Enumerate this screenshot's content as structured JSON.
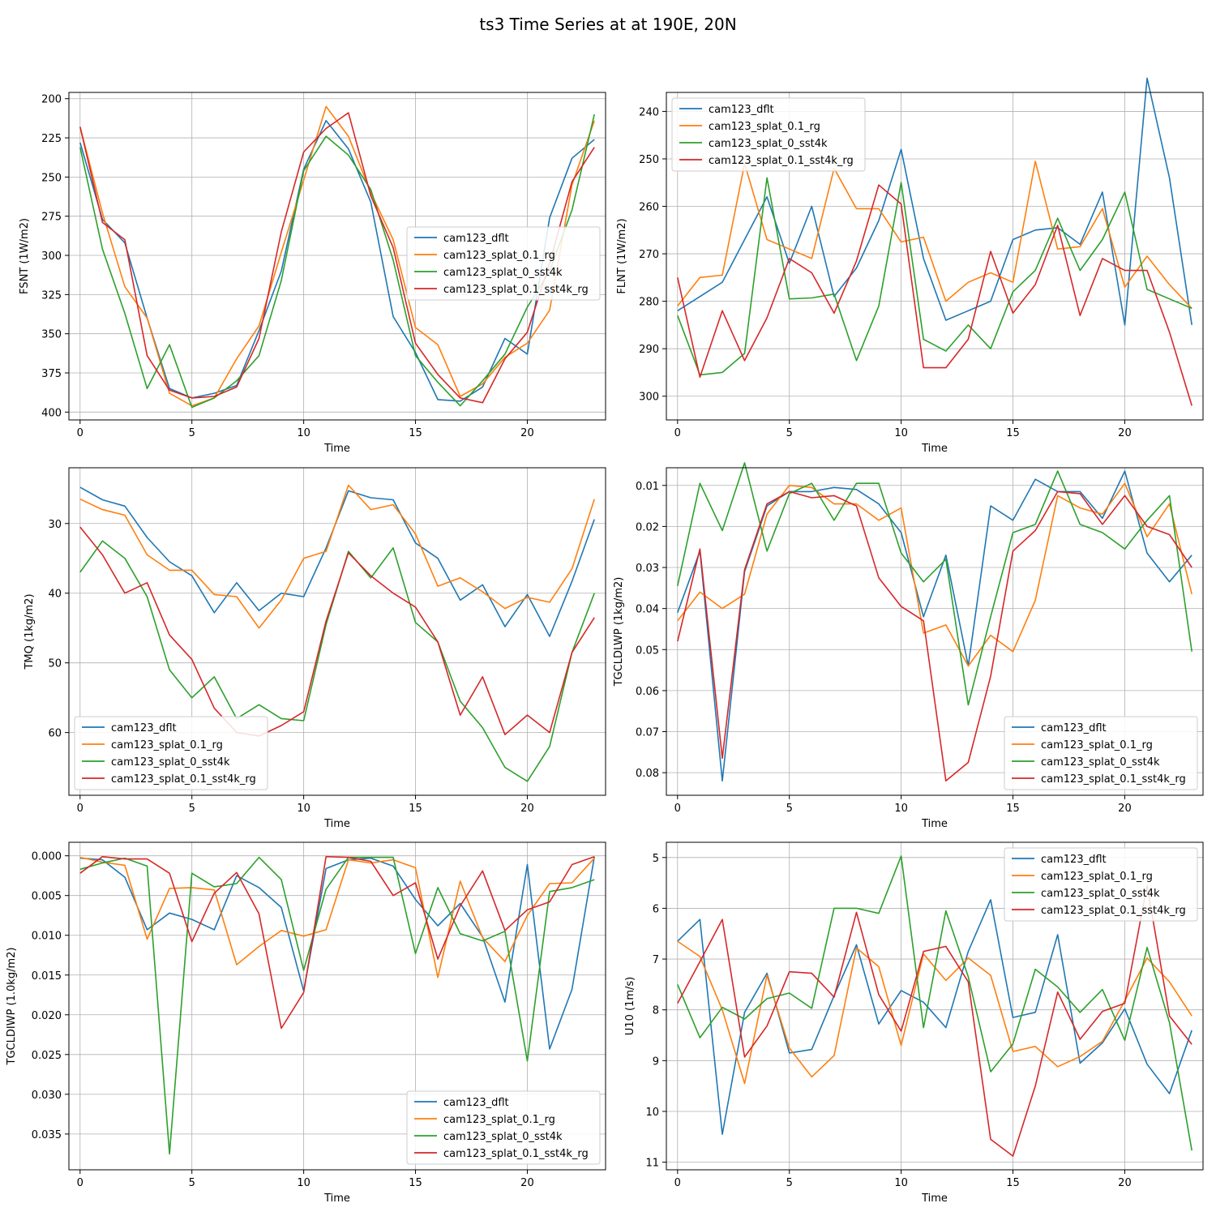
{
  "figure": {
    "title": "ts3 Time Series at at 190E, 20N"
  },
  "colors": {
    "cam123_dflt": "#1f77b4",
    "cam123_splat_0.1_rg": "#ff7f0e",
    "cam123_splat_0_sst4k": "#2ca02c",
    "cam123_splat_0.1_sst4k_rg": "#d62728"
  },
  "chart_data": [
    {
      "type": "line",
      "title": "",
      "xlabel": "Time",
      "ylabel": "FSNT (1W/m2)",
      "xlim": [
        -0.5,
        23.5
      ],
      "ylim": [
        405,
        196
      ],
      "xticks": [
        0,
        5,
        10,
        15,
        20
      ],
      "yticks": [
        200,
        225,
        250,
        275,
        300,
        325,
        350,
        375,
        400
      ],
      "y_inverted": true,
      "grid": true,
      "legend": "center-right",
      "x": [
        0,
        1,
        2,
        3,
        4,
        5,
        6,
        7,
        8,
        9,
        10,
        11,
        12,
        13,
        14,
        15,
        16,
        17,
        18,
        19,
        20,
        21,
        22,
        23
      ],
      "series": [
        {
          "name": "cam123_dflt",
          "values": [
            228,
            277,
            292,
            340,
            385,
            391,
            388,
            383,
            348,
            310,
            245,
            214,
            232,
            266,
            339,
            362,
            392,
            393,
            384,
            353,
            363,
            276,
            238,
            226
          ]
        },
        {
          "name": "cam123_splat_0.1_rg",
          "values": [
            218,
            273,
            320,
            340,
            388,
            396,
            391,
            366,
            345,
            298,
            252,
            205,
            224,
            260,
            290,
            346,
            357,
            390,
            382,
            365,
            356,
            335,
            255,
            214
          ]
        },
        {
          "name": "cam123_splat_0_sst4k",
          "values": [
            231,
            296,
            337,
            385,
            357,
            397,
            391,
            380,
            364,
            316,
            246,
            224,
            236,
            258,
            303,
            364,
            381,
            396,
            380,
            363,
            333,
            310,
            271,
            210
          ]
        },
        {
          "name": "cam123_splat_0.1_sst4k_rg",
          "values": [
            218,
            279,
            290,
            364,
            386,
            391,
            390,
            384,
            353,
            285,
            234,
            219,
            209,
            262,
            295,
            356,
            376,
            391,
            394,
            366,
            349,
            305,
            253,
            231
          ]
        }
      ]
    },
    {
      "type": "line",
      "title": "",
      "xlabel": "Time",
      "ylabel": "FLNT (1W/m2)",
      "xlim": [
        -0.5,
        23.5
      ],
      "ylim": [
        305,
        236
      ],
      "xticks": [
        0,
        5,
        10,
        15,
        20
      ],
      "yticks": [
        240,
        250,
        260,
        270,
        280,
        290,
        300
      ],
      "y_inverted": true,
      "grid": true,
      "legend": "top-left",
      "x": [
        0,
        1,
        2,
        3,
        4,
        5,
        6,
        7,
        8,
        9,
        10,
        11,
        12,
        13,
        14,
        15,
        16,
        17,
        18,
        19,
        20,
        21,
        22,
        23
      ],
      "series": [
        {
          "name": "cam123_dflt",
          "values": [
            282,
            279,
            276,
            267,
            258,
            272,
            260,
            279,
            273,
            263,
            248,
            271,
            284,
            282,
            280,
            267,
            265,
            264.5,
            268,
            257,
            285,
            233,
            254,
            285
          ]
        },
        {
          "name": "cam123_splat_0.1_rg",
          "values": [
            281,
            275,
            274.5,
            251,
            267,
            269,
            271,
            252,
            260.5,
            260.5,
            267.5,
            266.5,
            280,
            276,
            274,
            276,
            250.5,
            269,
            268.5,
            260.5,
            277,
            270.5,
            276.5,
            281.5
          ]
        },
        {
          "name": "cam123_splat_0_sst4k",
          "values": [
            283,
            295.5,
            295,
            291,
            254,
            279.5,
            279.3,
            278.5,
            292.5,
            281,
            255,
            288,
            290.5,
            285,
            290,
            278,
            273.5,
            262.5,
            273.5,
            267,
            257,
            277.5,
            279.5,
            281.5
          ]
        },
        {
          "name": "cam123_splat_0.1_sst4k_rg",
          "values": [
            275,
            296,
            282,
            292.5,
            283.5,
            271,
            274,
            282.5,
            271.5,
            255.5,
            259.5,
            294,
            294,
            288,
            269.5,
            282.5,
            276.5,
            264,
            283,
            271,
            273.5,
            273.5,
            286.5,
            302
          ]
        }
      ]
    },
    {
      "type": "line",
      "title": "",
      "xlabel": "Time",
      "ylabel": "TMQ (1kg/m2)",
      "xlim": [
        -0.5,
        23.5
      ],
      "ylim": [
        69,
        22
      ],
      "xticks": [
        0,
        5,
        10,
        15,
        20
      ],
      "yticks": [
        30,
        40,
        50,
        60
      ],
      "y_inverted": true,
      "grid": true,
      "legend": "bottom-left",
      "x": [
        0,
        1,
        2,
        3,
        4,
        5,
        6,
        7,
        8,
        9,
        10,
        11,
        12,
        13,
        14,
        15,
        16,
        17,
        18,
        19,
        20,
        21,
        22,
        23
      ],
      "series": [
        {
          "name": "cam123_dflt",
          "values": [
            24.8,
            26.6,
            27.5,
            32,
            35.5,
            37.5,
            42.8,
            38.5,
            42.5,
            40,
            40.5,
            33.5,
            25.3,
            26.3,
            26.6,
            32.8,
            35,
            41,
            38.8,
            44.8,
            40.2,
            46.2,
            38.3,
            29.4
          ]
        },
        {
          "name": "cam123_splat_0.1_rg",
          "values": [
            26.5,
            28,
            28.8,
            34.5,
            36.7,
            36.7,
            40.2,
            40.5,
            45,
            41,
            35,
            34,
            24.5,
            28,
            27.3,
            31.5,
            39,
            37.8,
            39.8,
            42.2,
            40.6,
            41.3,
            36.5,
            26.5
          ]
        },
        {
          "name": "cam123_splat_0_sst4k",
          "values": [
            37,
            32.5,
            35,
            40.5,
            51,
            55,
            52,
            58,
            56,
            58,
            58.3,
            44.5,
            34,
            37.8,
            33.5,
            44.2,
            47,
            55.5,
            59.3,
            65,
            67,
            62,
            48.5,
            40
          ]
        },
        {
          "name": "cam123_splat_0.1_sst4k_rg",
          "values": [
            30.5,
            34.5,
            40,
            38.5,
            46,
            49.5,
            56.5,
            60,
            60.5,
            59,
            57,
            44,
            34.2,
            37.5,
            40,
            42,
            47,
            57.5,
            52,
            60.3,
            57.5,
            60,
            48.5,
            43.5
          ]
        }
      ]
    },
    {
      "type": "line",
      "title": "",
      "xlabel": "Time",
      "ylabel": "TGCLDLWP (1kg/m2)",
      "xlim": [
        -0.5,
        23.5
      ],
      "ylim": [
        0.0855,
        0.0057
      ],
      "xticks": [
        0,
        5,
        10,
        15,
        20
      ],
      "yticks": [
        0.01,
        0.02,
        0.03,
        0.04,
        0.05,
        0.06,
        0.07,
        0.08
      ],
      "y_inverted": true,
      "grid": true,
      "legend": "bottom-right",
      "x": [
        0,
        1,
        2,
        3,
        4,
        5,
        6,
        7,
        8,
        9,
        10,
        11,
        12,
        13,
        14,
        15,
        16,
        17,
        18,
        19,
        20,
        21,
        22,
        23
      ],
      "series": [
        {
          "name": "cam123_dflt",
          "values": [
            0.041,
            0.026,
            0.082,
            0.031,
            0.015,
            0.0115,
            0.0115,
            0.0105,
            0.011,
            0.0145,
            0.0215,
            0.042,
            0.027,
            0.054,
            0.015,
            0.0185,
            0.0085,
            0.0115,
            0.0115,
            0.018,
            0.0065,
            0.0265,
            0.0335,
            0.027
          ]
        },
        {
          "name": "cam123_splat_0.1_rg",
          "values": [
            0.043,
            0.036,
            0.04,
            0.0365,
            0.017,
            0.01,
            0.0105,
            0.0145,
            0.0145,
            0.0185,
            0.0155,
            0.046,
            0.044,
            0.054,
            0.0465,
            0.0505,
            0.038,
            0.0125,
            0.0155,
            0.017,
            0.0095,
            0.0225,
            0.0145,
            0.0365
          ]
        },
        {
          "name": "cam123_splat_0_sst4k",
          "values": [
            0.0345,
            0.0095,
            0.021,
            0.0045,
            0.026,
            0.012,
            0.0095,
            0.0185,
            0.0095,
            0.0095,
            0.0265,
            0.0335,
            0.028,
            0.0635,
            0.042,
            0.0215,
            0.0195,
            0.0065,
            0.0195,
            0.0215,
            0.0255,
            0.0185,
            0.0125,
            0.0505
          ]
        },
        {
          "name": "cam123_splat_0.1_sst4k_rg",
          "values": [
            0.048,
            0.0255,
            0.0765,
            0.0305,
            0.0145,
            0.0115,
            0.013,
            0.0125,
            0.015,
            0.0325,
            0.0395,
            0.043,
            0.082,
            0.0775,
            0.0565,
            0.026,
            0.021,
            0.0115,
            0.012,
            0.0195,
            0.0125,
            0.02,
            0.022,
            0.03
          ]
        }
      ]
    },
    {
      "type": "line",
      "title": "",
      "xlabel": "Time",
      "ylabel": "TGCLDIWP (1.0kg/m2)",
      "xlim": [
        -0.5,
        23.5
      ],
      "ylim": [
        0.0395,
        -0.0017
      ],
      "xticks": [
        0,
        5,
        10,
        15,
        20
      ],
      "yticks": [
        0.0,
        0.005,
        0.01,
        0.015,
        0.02,
        0.025,
        0.03,
        0.035
      ],
      "ytick_labels": [
        "0.000",
        "0.005",
        "0.010",
        "0.015",
        "0.020",
        "0.025",
        "0.030",
        "0.035"
      ],
      "y_inverted": true,
      "grid": true,
      "legend": "bottom-right",
      "x": [
        0,
        1,
        2,
        3,
        4,
        5,
        6,
        7,
        8,
        9,
        10,
        11,
        12,
        13,
        14,
        15,
        16,
        17,
        18,
        19,
        20,
        21,
        22,
        23
      ],
      "series": [
        {
          "name": "cam123_dflt",
          "values": [
            0.0003,
            0.0005,
            0.0027,
            0.0093,
            0.0072,
            0.008,
            0.0093,
            0.0025,
            0.004,
            0.0065,
            0.017,
            0.0016,
            0.0005,
            0.0003,
            0.0013,
            0.0055,
            0.0088,
            0.006,
            0.0102,
            0.0184,
            0.0011,
            0.0243,
            0.0168,
            0.0001
          ]
        },
        {
          "name": "cam123_splat_0.1_rg",
          "values": [
            0.0002,
            0.0008,
            0.0012,
            0.0105,
            0.0041,
            0.004,
            0.0043,
            0.0137,
            0.0114,
            0.0094,
            0.0101,
            0.0093,
            0.0005,
            0.0009,
            0.0005,
            0.0015,
            0.0153,
            0.0032,
            0.0103,
            0.0133,
            0.0075,
            0.0035,
            0.0034,
            0.0003
          ]
        },
        {
          "name": "cam123_splat_0_sst4k",
          "values": [
            0.0017,
            0.0009,
            0.0003,
            0.0013,
            0.0375,
            0.0022,
            0.0039,
            0.0035,
            0.0002,
            0.003,
            0.0144,
            0.0042,
            0.0002,
            0.0002,
            0.0002,
            0.0123,
            0.004,
            0.0098,
            0.0107,
            0.0095,
            0.0258,
            0.0045,
            0.004,
            0.003
          ]
        },
        {
          "name": "cam123_splat_0.1_sst4k_rg",
          "values": [
            0.0022,
            0.0001,
            0.0004,
            0.0004,
            0.0022,
            0.0108,
            0.0047,
            0.0021,
            0.0073,
            0.0217,
            0.0172,
            0.0001,
            0.0002,
            0.0007,
            0.005,
            0.0034,
            0.013,
            0.0063,
            0.0019,
            0.0094,
            0.0068,
            0.0058,
            0.0011,
            0.0001
          ]
        }
      ]
    },
    {
      "type": "line",
      "title": "",
      "xlabel": "Time",
      "ylabel": "U10 (1m/s)",
      "xlim": [
        -0.5,
        23.5
      ],
      "ylim": [
        11.15,
        4.7
      ],
      "xticks": [
        0,
        5,
        10,
        15,
        20
      ],
      "yticks": [
        5,
        6,
        7,
        8,
        9,
        10,
        11
      ],
      "y_inverted": true,
      "grid": true,
      "legend": "top-right",
      "x": [
        0,
        1,
        2,
        3,
        4,
        5,
        6,
        7,
        8,
        9,
        10,
        11,
        12,
        13,
        14,
        15,
        16,
        17,
        18,
        19,
        20,
        21,
        22,
        23
      ],
      "series": [
        {
          "name": "cam123_dflt",
          "values": [
            6.65,
            6.22,
            10.45,
            8.05,
            7.28,
            8.85,
            8.78,
            7.72,
            6.72,
            8.28,
            7.62,
            7.85,
            8.35,
            6.85,
            5.83,
            8.15,
            8.05,
            6.52,
            9.05,
            8.65,
            7.98,
            9.07,
            9.65,
            8.4
          ]
        },
        {
          "name": "cam123_splat_0.1_rg",
          "values": [
            6.65,
            6.95,
            8.0,
            9.45,
            7.32,
            8.75,
            9.32,
            8.9,
            6.78,
            7.15,
            8.7,
            6.9,
            7.42,
            6.98,
            7.32,
            8.82,
            8.72,
            9.12,
            8.92,
            8.62,
            7.82,
            6.98,
            7.45,
            8.12
          ]
        },
        {
          "name": "cam123_splat_0_sst4k",
          "values": [
            7.5,
            8.55,
            7.95,
            8.18,
            7.78,
            7.67,
            7.97,
            6.0,
            6.0,
            6.1,
            4.97,
            8.35,
            6.05,
            7.35,
            9.22,
            8.67,
            7.2,
            7.55,
            8.05,
            7.6,
            8.6,
            6.77,
            8.25,
            10.77
          ]
        },
        {
          "name": "cam123_splat_0.1_sst4k_rg",
          "values": [
            7.87,
            7.05,
            6.22,
            8.93,
            8.32,
            7.25,
            7.28,
            7.75,
            6.08,
            7.7,
            8.42,
            6.85,
            6.75,
            7.45,
            10.55,
            10.88,
            9.5,
            7.65,
            8.58,
            8.03,
            7.87,
            5.55,
            8.12,
            8.68
          ]
        }
      ]
    }
  ]
}
